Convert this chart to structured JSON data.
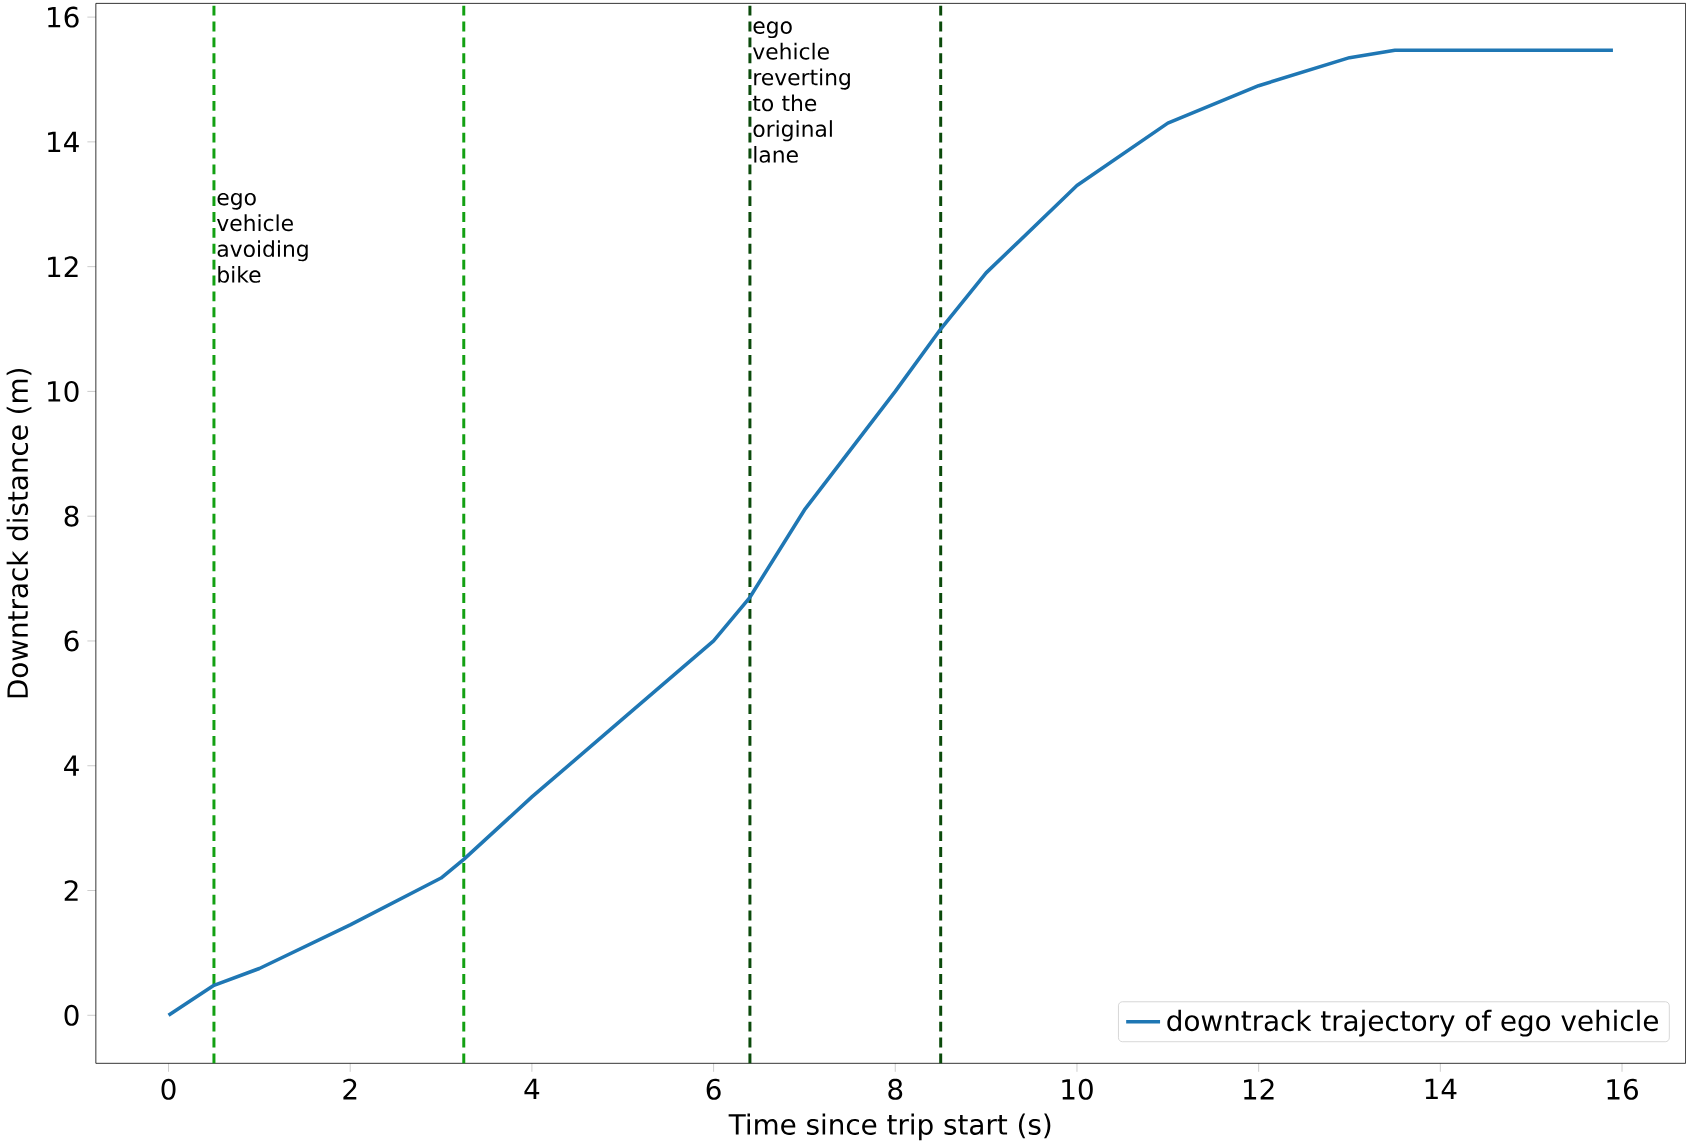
{
  "chart_data": {
    "type": "line",
    "xlabel": "Time since trip start (s)",
    "ylabel": "Downtrack distance (m)",
    "xlim": [
      -0.8,
      16.7
    ],
    "ylim": [
      -0.77,
      16.22
    ],
    "xticks": [
      0,
      2,
      4,
      6,
      8,
      10,
      12,
      14,
      16
    ],
    "yticks": [
      0,
      2,
      4,
      6,
      8,
      10,
      12,
      14,
      16
    ],
    "series": [
      {
        "name": "downtrack trajectory of ego vehicle",
        "color": "#1f77b4",
        "x": [
          0,
          0.5,
          1,
          2,
          3,
          3.25,
          4,
          5,
          6,
          6.4,
          7,
          8,
          8.5,
          9,
          10,
          11,
          12,
          13,
          13.5,
          15.9
        ],
        "values": [
          0,
          0.48,
          0.75,
          1.45,
          2.2,
          2.5,
          3.5,
          4.75,
          6.0,
          6.7,
          8.1,
          10.0,
          11.0,
          11.9,
          13.3,
          14.3,
          14.9,
          15.35,
          15.47,
          15.47
        ]
      }
    ],
    "ref_lines": [
      {
        "axis": "x",
        "value": 0.5,
        "label": "ego vehicle avoiding bike",
        "color": "#12a012",
        "line_style": "dashed"
      },
      {
        "axis": "x",
        "value": 3.25,
        "color": "#12a012",
        "line_style": "dashed"
      },
      {
        "axis": "x",
        "value": 6.4,
        "label": "ego vehicle reverting to the original lane",
        "color": "#0b4a0b",
        "line_style": "dashed"
      },
      {
        "axis": "x",
        "value": 8.5,
        "color": "#0b4a0b",
        "line_style": "dashed"
      }
    ],
    "legend": "bottom right",
    "marker": "none",
    "line_style": "solid",
    "grid": false
  }
}
